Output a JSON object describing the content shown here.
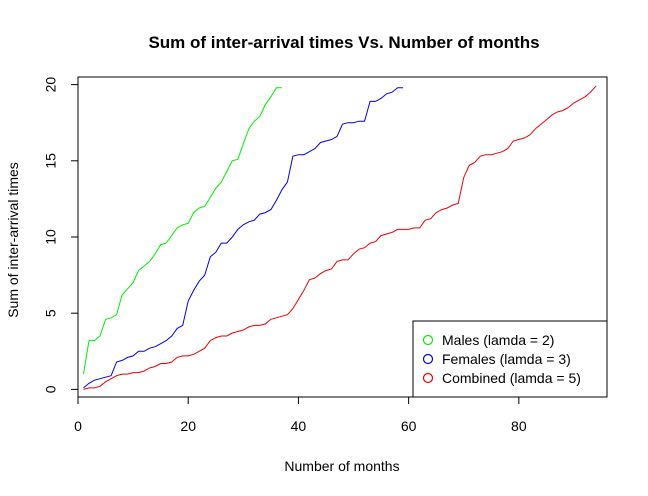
{
  "chart_data": {
    "type": "line",
    "title": "Sum of inter-arrival times Vs. Number of months",
    "xlabel": "Number of months",
    "ylabel": "Sum of inter-arrival times",
    "xlim": [
      0,
      96
    ],
    "ylim": [
      -0.5,
      20.5
    ],
    "x_ticks": [
      "0",
      "20",
      "40",
      "60",
      "80"
    ],
    "y_ticks": [
      "0",
      "5",
      "10",
      "15",
      "20"
    ],
    "grid": false,
    "legend_position": "bottom-right",
    "series": [
      {
        "name": "Males (lamda = 2)",
        "color": "#00ee00",
        "x": [
          1,
          2,
          3,
          4,
          5,
          6,
          7,
          8,
          9,
          10,
          11,
          12,
          13,
          14,
          15,
          16,
          17,
          18,
          19,
          20,
          21,
          22,
          23,
          24,
          25,
          26,
          27,
          28,
          29,
          30,
          31,
          32,
          33,
          34,
          35,
          36,
          37
        ],
        "y": [
          1.0,
          3.2,
          3.2,
          3.5,
          4.6,
          4.7,
          4.9,
          6.2,
          6.6,
          7.0,
          7.8,
          8.1,
          8.4,
          8.9,
          9.5,
          9.6,
          10.1,
          10.6,
          10.8,
          10.9,
          11.6,
          11.9,
          12.0,
          12.6,
          13.2,
          13.6,
          14.3,
          15.0,
          15.1,
          16.1,
          17.1,
          17.6,
          17.9,
          18.7,
          19.2,
          19.8,
          19.8
        ]
      },
      {
        "name": "Females (lamda = 3)",
        "color": "#0000ee",
        "x": [
          1,
          2,
          3,
          4,
          5,
          6,
          7,
          8,
          9,
          10,
          11,
          12,
          13,
          14,
          15,
          16,
          17,
          18,
          19,
          20,
          21,
          22,
          23,
          24,
          25,
          26,
          27,
          28,
          29,
          30,
          31,
          32,
          33,
          34,
          35,
          36,
          37,
          38,
          39,
          40,
          41,
          42,
          43,
          44,
          45,
          46,
          47,
          48,
          49,
          50,
          51,
          52,
          53,
          54,
          55,
          56,
          57,
          58,
          59
        ],
        "y": [
          0.1,
          0.4,
          0.6,
          0.7,
          0.8,
          0.9,
          1.8,
          1.9,
          2.1,
          2.2,
          2.5,
          2.5,
          2.7,
          2.8,
          3.0,
          3.2,
          3.5,
          4.0,
          4.2,
          5.8,
          6.5,
          7.1,
          7.5,
          8.7,
          9.0,
          9.6,
          9.6,
          10.0,
          10.5,
          10.8,
          11.0,
          11.1,
          11.5,
          11.6,
          11.8,
          12.4,
          13.1,
          13.6,
          15.3,
          15.4,
          15.4,
          15.6,
          15.8,
          16.2,
          16.3,
          16.4,
          16.6,
          17.4,
          17.5,
          17.5,
          17.6,
          17.6,
          18.9,
          18.9,
          19.1,
          19.4,
          19.5,
          19.8,
          19.8
        ]
      },
      {
        "name": "Combined (lamda = 5)",
        "color": "#ee0000",
        "x": [
          1,
          2,
          3,
          4,
          5,
          6,
          7,
          8,
          9,
          10,
          11,
          12,
          13,
          14,
          15,
          16,
          17,
          18,
          19,
          20,
          21,
          22,
          23,
          24,
          25,
          26,
          27,
          28,
          29,
          30,
          31,
          32,
          33,
          34,
          35,
          36,
          37,
          38,
          39,
          40,
          41,
          42,
          43,
          44,
          45,
          46,
          47,
          48,
          49,
          50,
          51,
          52,
          53,
          54,
          55,
          56,
          57,
          58,
          59,
          60,
          61,
          62,
          63,
          64,
          65,
          66,
          67,
          68,
          69,
          70,
          71,
          72,
          73,
          74,
          75,
          76,
          77,
          78,
          79,
          80,
          81,
          82,
          83,
          84,
          85,
          86,
          87,
          88,
          89,
          90,
          91,
          92,
          93,
          94
        ],
        "y": [
          0.0,
          0.1,
          0.1,
          0.2,
          0.5,
          0.7,
          0.9,
          1.0,
          1.0,
          1.1,
          1.1,
          1.2,
          1.4,
          1.5,
          1.7,
          1.7,
          1.8,
          2.1,
          2.2,
          2.2,
          2.3,
          2.5,
          2.7,
          3.2,
          3.4,
          3.5,
          3.5,
          3.7,
          3.8,
          3.9,
          4.1,
          4.2,
          4.2,
          4.3,
          4.6,
          4.7,
          4.8,
          4.9,
          5.3,
          5.9,
          6.5,
          7.2,
          7.3,
          7.6,
          7.8,
          7.9,
          8.4,
          8.5,
          8.5,
          8.9,
          9.2,
          9.3,
          9.6,
          9.7,
          10.1,
          10.2,
          10.3,
          10.5,
          10.5,
          10.5,
          10.6,
          10.6,
          11.1,
          11.2,
          11.6,
          11.8,
          11.9,
          12.1,
          12.2,
          13.9,
          14.7,
          14.9,
          15.3,
          15.4,
          15.4,
          15.5,
          15.6,
          15.8,
          16.3,
          16.4,
          16.5,
          16.7,
          17.1,
          17.4,
          17.7,
          18.0,
          18.2,
          18.3,
          18.5,
          18.8,
          19.0,
          19.2,
          19.5,
          19.9
        ]
      }
    ]
  }
}
